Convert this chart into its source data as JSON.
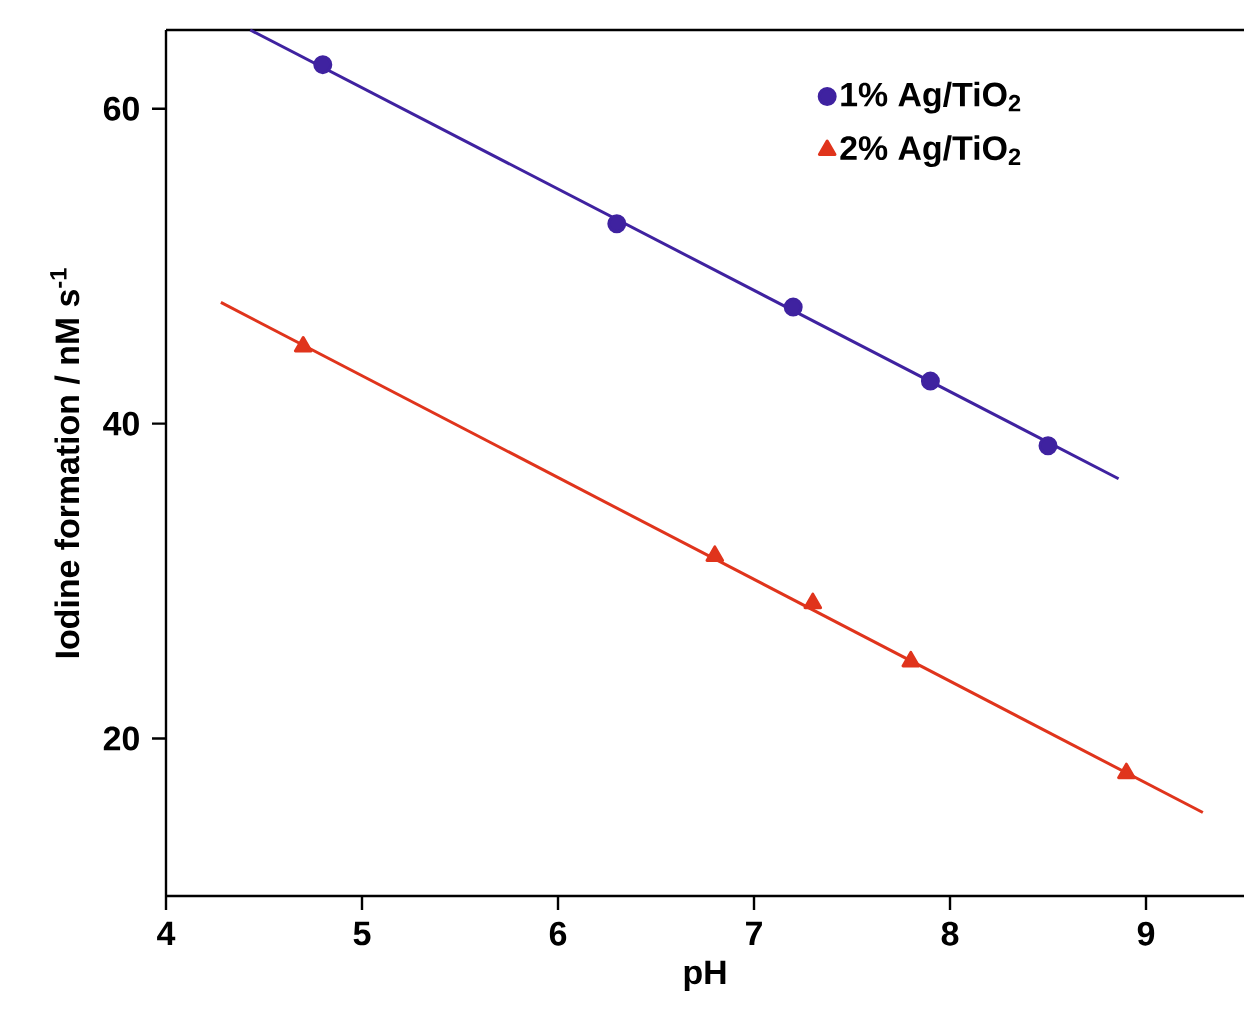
{
  "chart_data": {
    "type": "scatter",
    "xlabel": "pH",
    "ylabel": "Iodine formation / nM s$^{-1}$",
    "xlim": [
      4,
      9.5
    ],
    "ylim": [
      10,
      65
    ],
    "xticks": [
      4,
      5,
      6,
      7,
      8,
      9
    ],
    "yticks": [
      20,
      40,
      60
    ],
    "grid": false,
    "legend": "top right",
    "series": [
      {
        "name": "1% Ag/TiO$_{2}$",
        "marker": "circle",
        "color": "#3f22a0",
        "x": [
          4.8,
          6.3,
          7.2,
          7.9,
          8.5
        ],
        "values": [
          62.8,
          52.7,
          47.4,
          42.7,
          38.6
        ]
      },
      {
        "name": "2% Ag/TiO$_{2}$",
        "marker": "triangle",
        "color": "#e0341c",
        "x": [
          4.7,
          6.8,
          7.3,
          7.8,
          8.9
        ],
        "values": [
          44.9,
          31.6,
          28.6,
          24.9,
          17.8
        ]
      },
      {
        "type": "line",
        "marker": "none",
        "color": "#3f22a0",
        "x": [
          4.43,
          8.86
        ],
        "values": [
          65,
          36.5
        ]
      },
      {
        "type": "line",
        "marker": "none",
        "color": "#e0341c",
        "x": [
          4.28,
          9.29
        ],
        "values": [
          47.7,
          15.3
        ]
      }
    ]
  }
}
